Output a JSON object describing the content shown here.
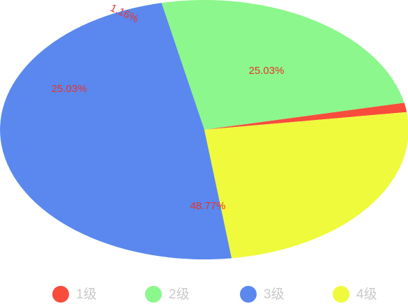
{
  "chart_data": {
    "type": "pie",
    "title": "",
    "categories": [
      "1级",
      "2级",
      "3级",
      "4级"
    ],
    "values": [
      1.16,
      25.03,
      48.77,
      25.03
    ],
    "data_labels": [
      "1.16%",
      "25.03%",
      "48.77%",
      "25.03%"
    ],
    "colors": [
      "#F84C3C",
      "#8CF78C",
      "#5A88EE",
      "#EFFA3C"
    ],
    "label_color": "#E8332C",
    "legend": {
      "position": "bottom",
      "label_color": "#C9C9C9"
    },
    "series": [
      {
        "values": [
          1.16,
          25.03,
          48.77,
          25.03
        ]
      }
    ]
  }
}
